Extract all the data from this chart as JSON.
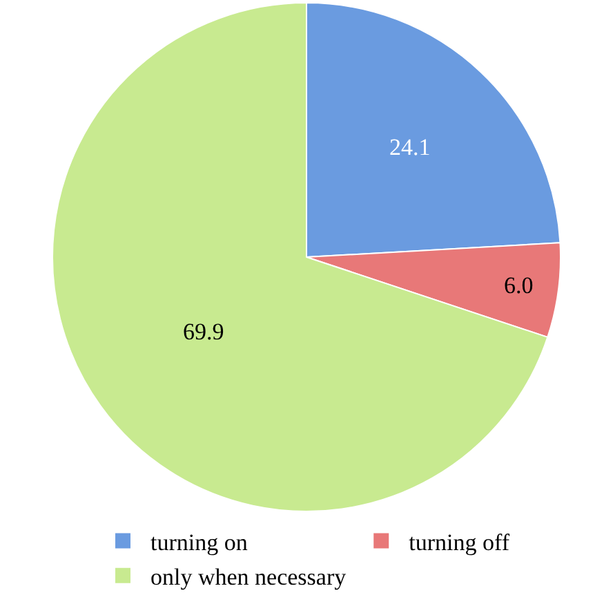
{
  "chart_data": {
    "type": "pie",
    "categories": [
      "turning on",
      "turning off",
      "only when necessary"
    ],
    "values": [
      24.1,
      6.0,
      69.9
    ],
    "value_labels": [
      "24.1",
      "6.0",
      "69.9"
    ],
    "colors": [
      "#6a9be0",
      "#e87878",
      "#c8ea90"
    ],
    "legend": "bottom"
  }
}
